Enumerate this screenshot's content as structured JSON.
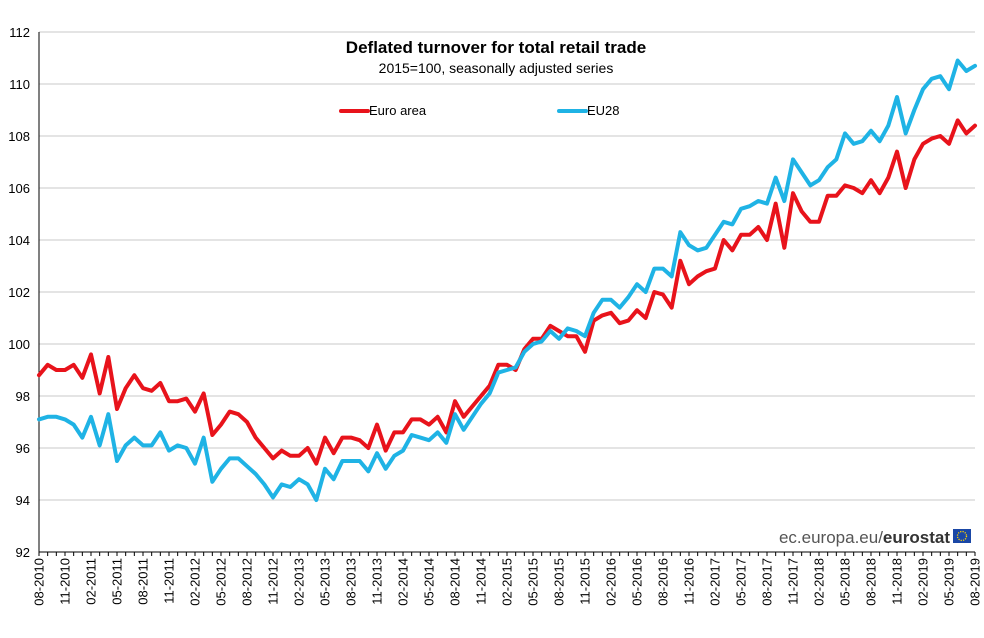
{
  "chart_data": {
    "type": "line",
    "title": "Deflated turnover for total retail trade",
    "subtitle": "2015=100, seasonally adjusted series",
    "ylim": [
      92,
      112
    ],
    "yticks": [
      92,
      94,
      96,
      98,
      100,
      102,
      104,
      106,
      108,
      110,
      112
    ],
    "grid": true,
    "legend_position": "top",
    "start_month": "2010-08",
    "xticks": [
      "08-2010",
      "11-2010",
      "02-2011",
      "05-2011",
      "08-2011",
      "11-2011",
      "02-2012",
      "05-2012",
      "08-2012",
      "11-2012",
      "02-2013",
      "05-2013",
      "08-2013",
      "11-2013",
      "02-2014",
      "05-2014",
      "08-2014",
      "11-2014",
      "02-2015",
      "05-2015",
      "08-2015",
      "11-2015",
      "02-2016",
      "05-2016",
      "08-2016",
      "11-2016",
      "02-2017",
      "05-2017",
      "08-2017",
      "11-2017",
      "02-2018",
      "05-2018",
      "08-2018",
      "11-2018",
      "02-2019",
      "05-2019",
      "08-2019"
    ],
    "series": [
      {
        "name": "Euro area",
        "color": "#e8131b",
        "values": [
          98.8,
          99.2,
          99.0,
          99.0,
          99.2,
          98.7,
          99.6,
          98.1,
          99.5,
          97.5,
          98.3,
          98.8,
          98.3,
          98.2,
          98.5,
          97.8,
          97.8,
          97.9,
          97.4,
          98.1,
          96.5,
          96.9,
          97.4,
          97.3,
          97.0,
          96.4,
          96.0,
          95.6,
          95.9,
          95.7,
          95.7,
          96.0,
          95.4,
          96.4,
          95.8,
          96.4,
          96.4,
          96.3,
          96.0,
          96.9,
          95.9,
          96.6,
          96.6,
          97.1,
          97.1,
          96.9,
          97.2,
          96.6,
          97.8,
          97.2,
          97.6,
          98.0,
          98.4,
          99.2,
          99.2,
          99.0,
          99.8,
          100.2,
          100.2,
          100.7,
          100.5,
          100.3,
          100.3,
          99.7,
          100.9,
          101.1,
          101.2,
          100.8,
          100.9,
          101.3,
          101.0,
          102.0,
          101.9,
          101.4,
          103.2,
          102.3,
          102.6,
          102.8,
          102.9,
          104.0,
          103.6,
          104.2,
          104.2,
          104.5,
          104.0,
          105.4,
          103.7,
          105.8,
          105.1,
          104.7,
          104.7,
          105.7,
          105.7,
          106.1,
          106.0,
          105.8,
          106.3,
          105.8,
          106.4,
          107.4,
          106.0,
          107.1,
          107.7,
          107.9,
          108.0,
          107.7,
          108.6,
          108.1,
          108.4
        ]
      },
      {
        "name": "EU28",
        "color": "#1fb3e5",
        "values": [
          97.1,
          97.2,
          97.2,
          97.1,
          96.9,
          96.4,
          97.2,
          96.1,
          97.3,
          95.5,
          96.1,
          96.4,
          96.1,
          96.1,
          96.6,
          95.9,
          96.1,
          96.0,
          95.4,
          96.4,
          94.7,
          95.2,
          95.6,
          95.6,
          95.3,
          95.0,
          94.6,
          94.1,
          94.6,
          94.5,
          94.8,
          94.6,
          94.0,
          95.2,
          94.8,
          95.5,
          95.5,
          95.5,
          95.1,
          95.8,
          95.2,
          95.7,
          95.9,
          96.5,
          96.4,
          96.3,
          96.6,
          96.2,
          97.3,
          96.7,
          97.2,
          97.7,
          98.1,
          98.9,
          99.0,
          99.1,
          99.7,
          100.0,
          100.1,
          100.5,
          100.2,
          100.6,
          100.5,
          100.3,
          101.2,
          101.7,
          101.7,
          101.4,
          101.8,
          102.3,
          102.0,
          102.9,
          102.9,
          102.6,
          104.3,
          103.8,
          103.6,
          103.7,
          104.2,
          104.7,
          104.6,
          105.2,
          105.3,
          105.5,
          105.4,
          106.4,
          105.5,
          107.1,
          106.6,
          106.1,
          106.3,
          106.8,
          107.1,
          108.1,
          107.7,
          107.8,
          108.2,
          107.8,
          108.4,
          109.5,
          108.1,
          109.0,
          109.8,
          110.2,
          110.3,
          109.8,
          110.9,
          110.5,
          110.7
        ]
      }
    ]
  },
  "branding": {
    "prefix": "ec.europa.eu/",
    "name": "eurostat"
  }
}
